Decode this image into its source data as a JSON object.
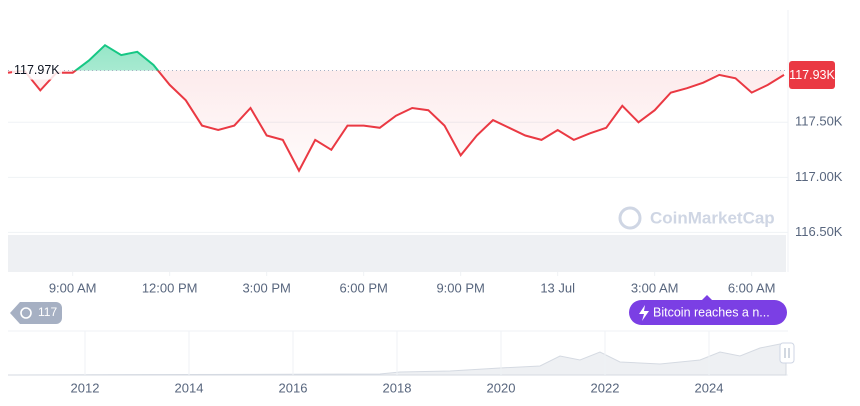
{
  "chart_data": {
    "type": "line",
    "x": [
      0,
      0.5,
      1,
      1.5,
      2,
      2.5,
      3,
      3.5,
      4,
      4.5,
      5,
      5.5,
      6,
      6.5,
      7,
      7.5,
      8,
      8.5,
      9,
      9.5,
      10,
      10.5,
      11,
      11.5,
      12,
      12.5,
      13,
      13.5,
      14,
      14.5,
      15,
      15.5,
      16,
      16.5,
      17,
      17.5,
      18,
      18.5,
      19,
      19.5,
      20,
      20.5,
      21,
      21.5,
      22,
      22.5,
      23,
      23.5,
      24
    ],
    "values": [
      117.95,
      117.97,
      117.79,
      117.95,
      117.95,
      118.06,
      118.2,
      118.11,
      118.14,
      118.02,
      117.84,
      117.7,
      117.47,
      117.43,
      117.47,
      117.63,
      117.38,
      117.34,
      117.06,
      117.34,
      117.25,
      117.47,
      117.47,
      117.45,
      117.56,
      117.63,
      117.61,
      117.47,
      117.2,
      117.38,
      117.52,
      117.45,
      117.38,
      117.34,
      117.43,
      117.34,
      117.4,
      117.45,
      117.65,
      117.5,
      117.61,
      117.77,
      117.81,
      117.86,
      117.93,
      117.9,
      117.77,
      117.84,
      117.93
    ],
    "xlim": [
      0,
      24
    ],
    "xticks": [
      {
        "value": 2,
        "label": "9:00 AM"
      },
      {
        "value": 5,
        "label": "12:00 PM"
      },
      {
        "value": 8,
        "label": "3:00 PM"
      },
      {
        "value": 11,
        "label": "6:00 PM"
      },
      {
        "value": 14,
        "label": "9:00 PM"
      },
      {
        "value": 17,
        "label": "13 Jul"
      },
      {
        "value": 20,
        "label": "3:00 AM"
      },
      {
        "value": 23,
        "label": "6:00 AM"
      }
    ],
    "ylim": [
      116.14,
      118.52
    ],
    "yticks": [
      {
        "value": 116.5,
        "label": "116.50K"
      },
      {
        "value": 117,
        "label": "117.00K"
      },
      {
        "value": 117.5,
        "label": "117.50K"
      }
    ],
    "baseline": {
      "value": 117.97,
      "label": "117.97K"
    },
    "current": {
      "value": 117.93,
      "label": "117.93K"
    },
    "up_color": "#16c784",
    "down_color": "#ea3943",
    "grid": true,
    "watermark": "CoinMarketCap"
  },
  "badges": {
    "count": "117",
    "news": "Bitcoin reaches a n..."
  },
  "navigator": {
    "years": [
      "2012",
      "2014",
      "2016",
      "2018",
      "2020",
      "2022",
      "2024"
    ]
  }
}
